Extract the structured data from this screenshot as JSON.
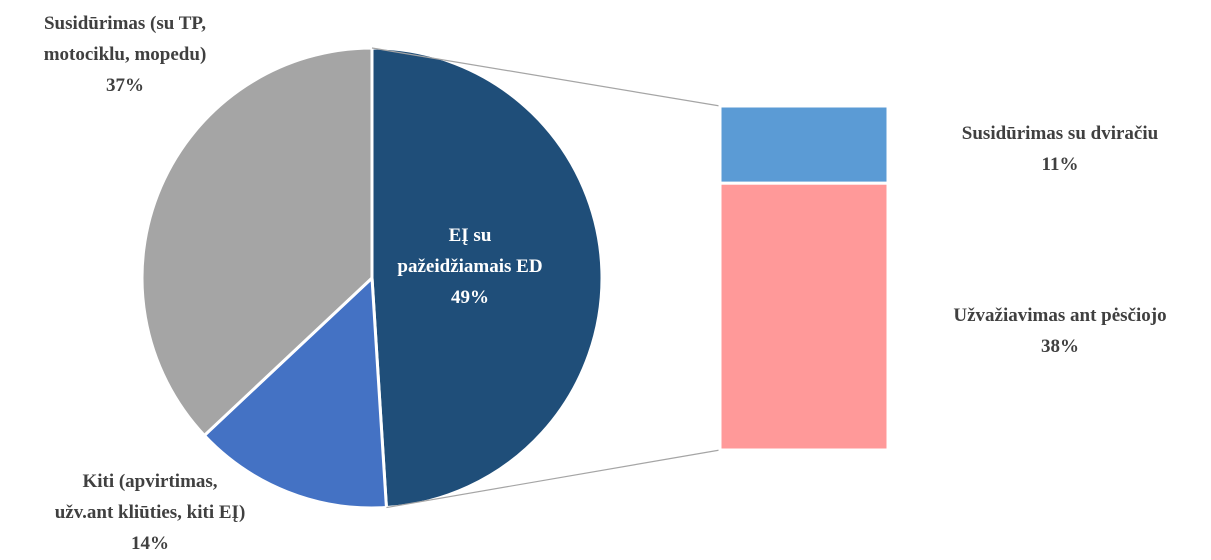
{
  "chart_data": {
    "type": "pie",
    "categories": [
      "EĮ su\npažeidžiamais ED",
      "Kiti (apvirtimas,\nužv.ant kliūties, kiti EĮ)",
      "Susidūrimas (su TP,\nmotociklu, mopedu)"
    ],
    "values": [
      49,
      14,
      37
    ],
    "value_labels": [
      "49%",
      "14%",
      "37%"
    ],
    "colors": [
      "#1f4e79",
      "#4472c4",
      "#a5a5a5"
    ],
    "split": {
      "categories": [
        "Susidūrimas su dviračiu",
        "Užvažiavimas ant pėsčiojo"
      ],
      "values": [
        11,
        38
      ],
      "value_labels": [
        "11%",
        "38%"
      ],
      "colors": [
        "#5b9bd5",
        "#ff9999"
      ]
    }
  }
}
